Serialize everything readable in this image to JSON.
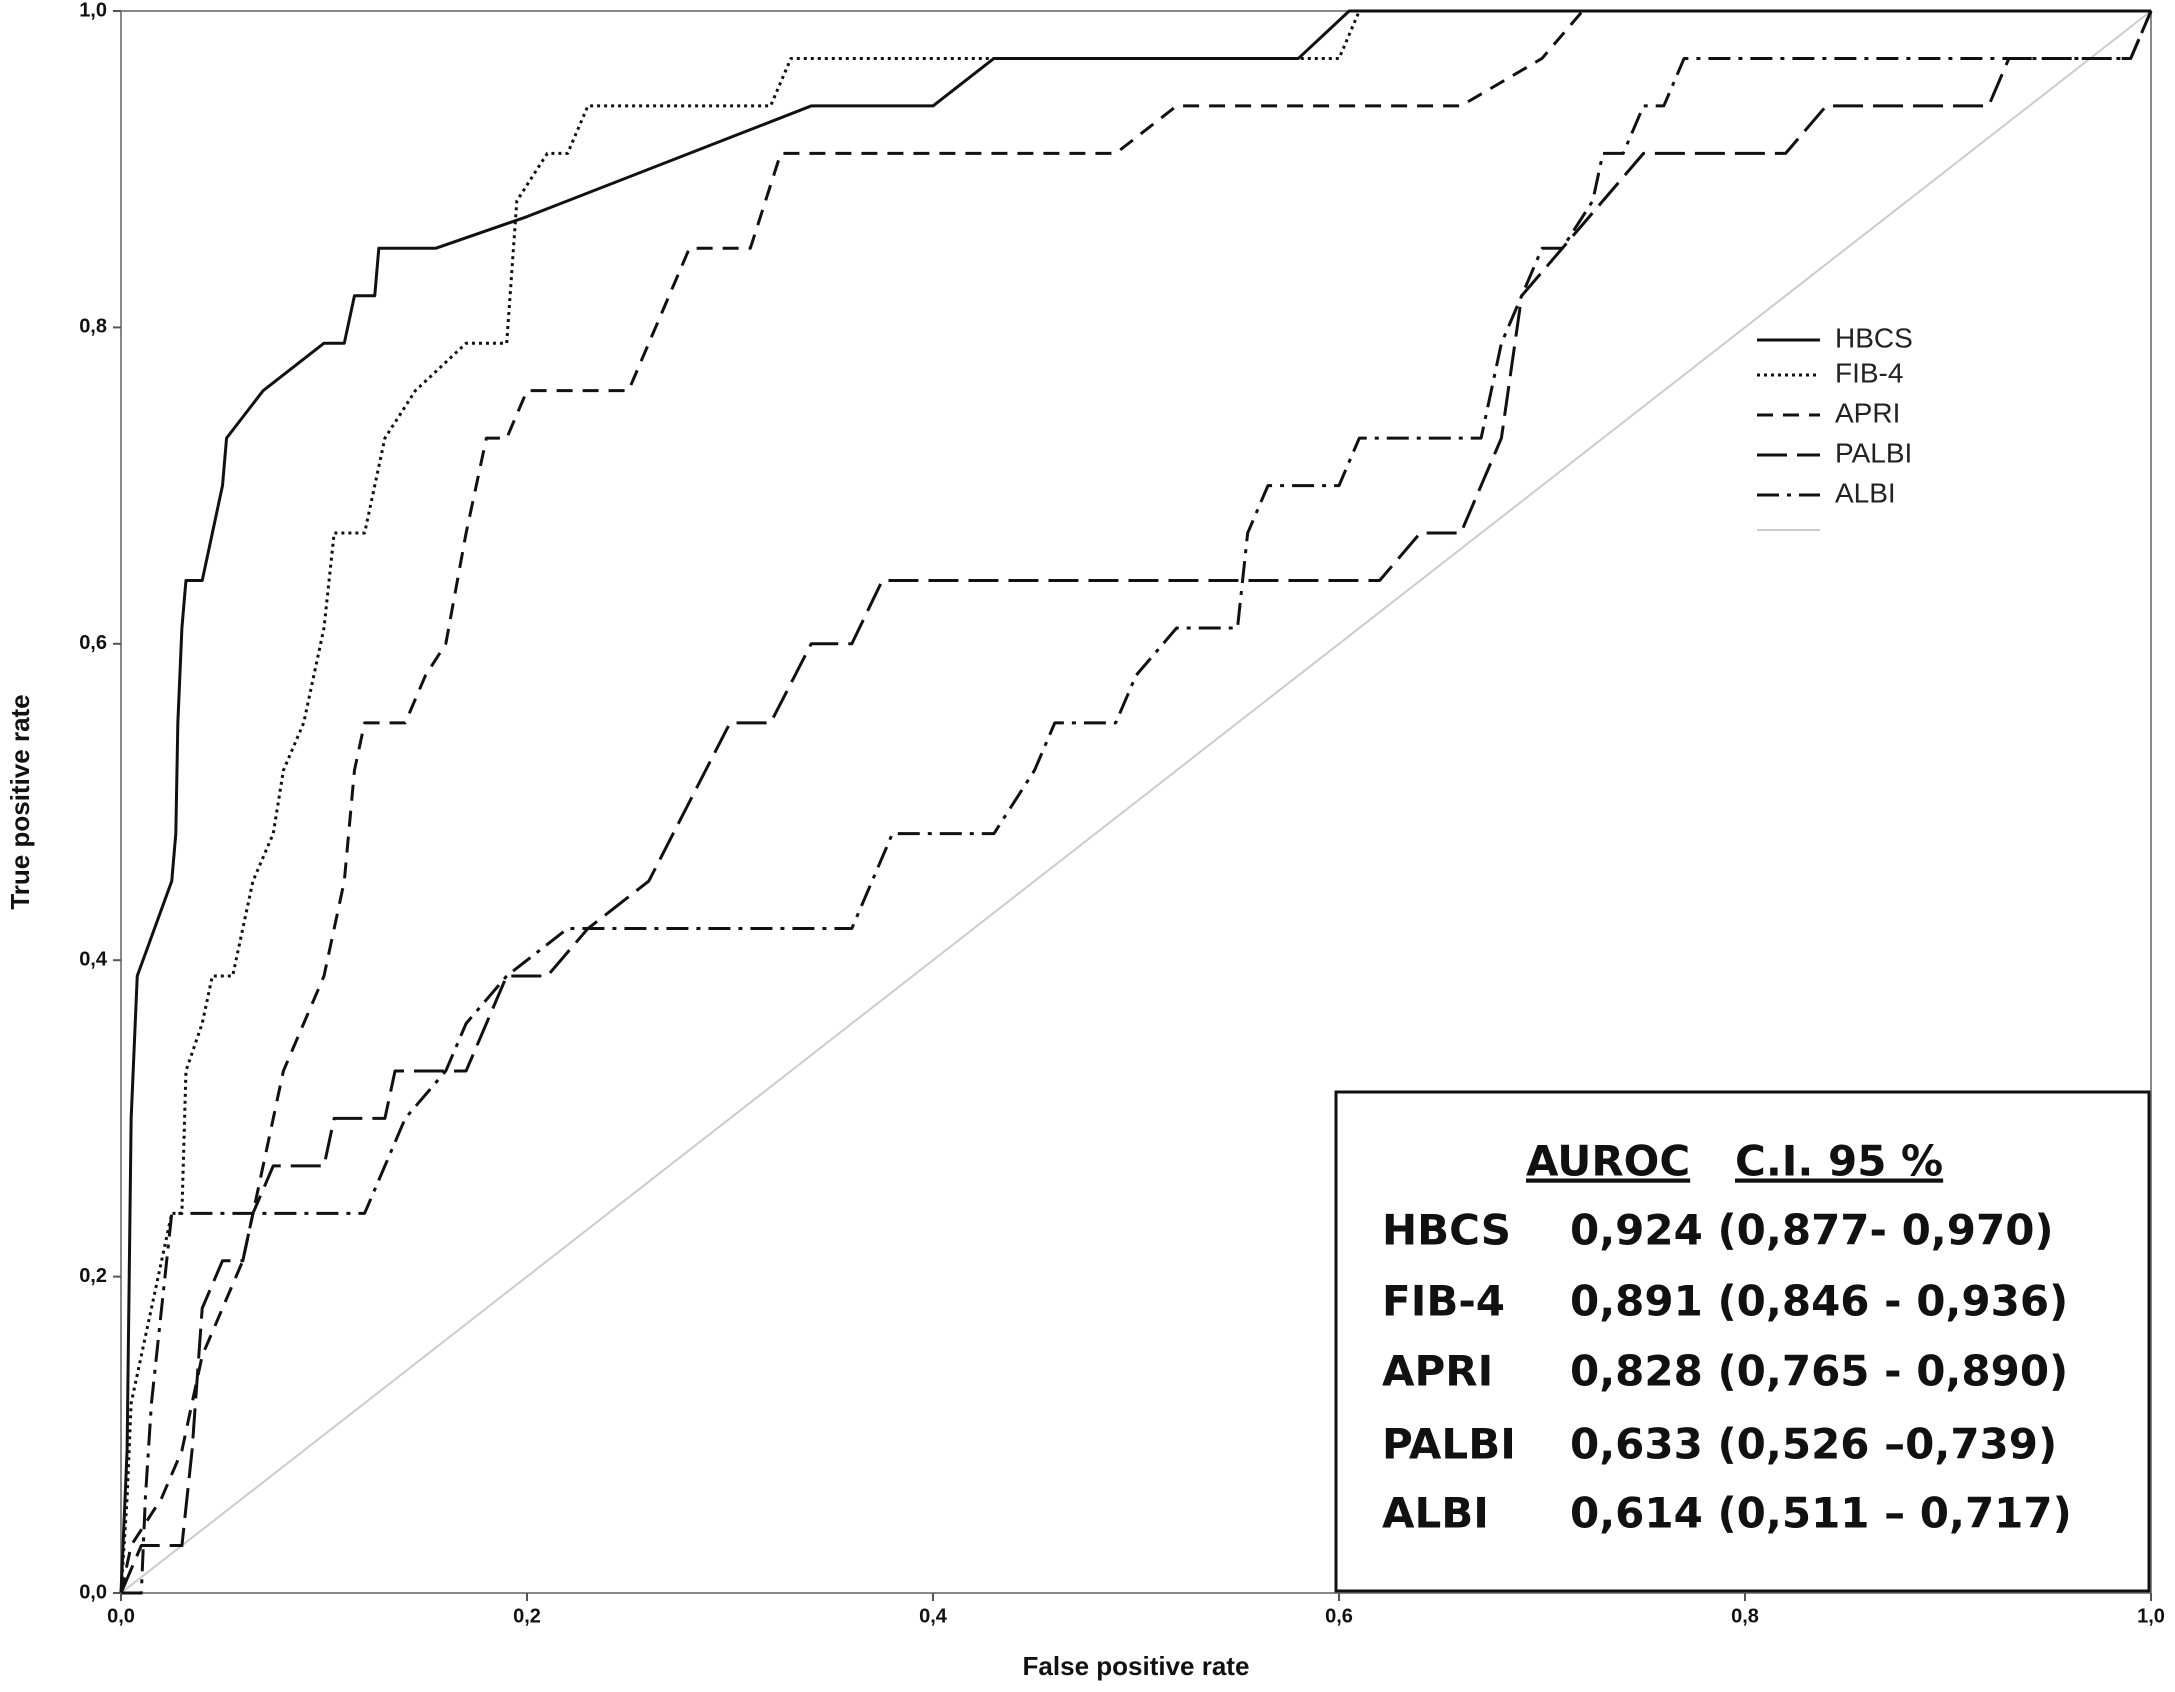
{
  "chart_data": {
    "type": "line",
    "x_label": "False positive rate",
    "y_label": "True positive rate",
    "xlim": [
      0,
      1
    ],
    "ylim": [
      0,
      1
    ],
    "xticks": [
      {
        "value": 0,
        "label": "0,0"
      },
      {
        "value": 0.2,
        "label": "0,2"
      },
      {
        "value": 0.4,
        "label": "0,4"
      },
      {
        "value": 0.6,
        "label": "0,6"
      },
      {
        "value": 0.8,
        "label": "0,8"
      },
      {
        "value": 1,
        "label": "1,0"
      }
    ],
    "yticks": [
      {
        "value": 0,
        "label": "0,0"
      },
      {
        "value": 0.2,
        "label": "0,2"
      },
      {
        "value": 0.4,
        "label": "0,4"
      },
      {
        "value": 0.6,
        "label": "0,6"
      },
      {
        "value": 0.8,
        "label": "0,8"
      },
      {
        "value": 1,
        "label": "1,0"
      }
    ],
    "series": [
      {
        "name": "HBCS",
        "color": "#111111",
        "line_style": "solid",
        "x": [
          0,
          0.003,
          0.005,
          0.008,
          0.025,
          0.027,
          0.028,
          0.03,
          0.032,
          0.04,
          0.05,
          0.052,
          0.07,
          0.1,
          0.11,
          0.115,
          0.125,
          0.127,
          0.155,
          0.2,
          0.34,
          0.4,
          0.43,
          0.58,
          0.605,
          1
        ],
        "values": [
          0,
          0.09,
          0.3,
          0.39,
          0.45,
          0.48,
          0.55,
          0.61,
          0.64,
          0.64,
          0.7,
          0.73,
          0.76,
          0.79,
          0.79,
          0.82,
          0.82,
          0.85,
          0.85,
          0.87,
          0.94,
          0.94,
          0.97,
          0.97,
          1,
          1
        ]
      },
      {
        "name": "FIB-4",
        "color": "#111111",
        "line_style": "dotted",
        "x": [
          0,
          0.003,
          0.005,
          0.01,
          0.015,
          0.02,
          0.025,
          0.03,
          0.032,
          0.04,
          0.045,
          0.055,
          0.06,
          0.065,
          0.075,
          0.08,
          0.09,
          0.1,
          0.105,
          0.12,
          0.13,
          0.145,
          0.17,
          0.19,
          0.195,
          0.21,
          0.22,
          0.23,
          0.32,
          0.33,
          0.6,
          0.61,
          1
        ],
        "values": [
          0,
          0.06,
          0.12,
          0.15,
          0.18,
          0.21,
          0.24,
          0.24,
          0.33,
          0.36,
          0.39,
          0.39,
          0.42,
          0.45,
          0.48,
          0.52,
          0.55,
          0.61,
          0.67,
          0.67,
          0.73,
          0.76,
          0.79,
          0.79,
          0.88,
          0.91,
          0.91,
          0.94,
          0.94,
          0.97,
          0.97,
          1,
          1
        ]
      },
      {
        "name": "APRI",
        "color": "#111111",
        "line_style": "dashed",
        "x": [
          0,
          0.005,
          0.02,
          0.03,
          0.04,
          0.05,
          0.06,
          0.065,
          0.075,
          0.08,
          0.09,
          0.1,
          0.11,
          0.115,
          0.12,
          0.14,
          0.15,
          0.16,
          0.17,
          0.18,
          0.19,
          0.2,
          0.25,
          0.27,
          0.28,
          0.31,
          0.325,
          0.49,
          0.52,
          0.66,
          0.7,
          0.72,
          1
        ],
        "values": [
          0,
          0.03,
          0.06,
          0.09,
          0.15,
          0.18,
          0.21,
          0.24,
          0.3,
          0.33,
          0.36,
          0.39,
          0.45,
          0.52,
          0.55,
          0.55,
          0.58,
          0.6,
          0.67,
          0.73,
          0.73,
          0.76,
          0.76,
          0.82,
          0.85,
          0.85,
          0.91,
          0.91,
          0.94,
          0.94,
          0.97,
          1,
          1
        ]
      },
      {
        "name": "PALBI",
        "color": "#111111",
        "line_style": "long-dashed",
        "x": [
          0,
          0.01,
          0.03,
          0.035,
          0.04,
          0.05,
          0.06,
          0.065,
          0.075,
          0.1,
          0.105,
          0.13,
          0.135,
          0.17,
          0.18,
          0.19,
          0.21,
          0.23,
          0.26,
          0.28,
          0.3,
          0.32,
          0.34,
          0.36,
          0.375,
          0.62,
          0.64,
          0.66,
          0.68,
          0.69,
          0.71,
          0.75,
          0.82,
          0.84,
          0.92,
          0.93,
          0.99,
          1
        ],
        "values": [
          0,
          0.03,
          0.03,
          0.09,
          0.18,
          0.21,
          0.21,
          0.24,
          0.27,
          0.27,
          0.3,
          0.3,
          0.33,
          0.33,
          0.36,
          0.39,
          0.39,
          0.42,
          0.45,
          0.5,
          0.55,
          0.55,
          0.6,
          0.6,
          0.64,
          0.64,
          0.67,
          0.67,
          0.73,
          0.82,
          0.85,
          0.91,
          0.91,
          0.94,
          0.94,
          0.97,
          0.97,
          1
        ]
      },
      {
        "name": "ALBI",
        "color": "#111111",
        "line_style": "dash-dot",
        "x": [
          0,
          0.01,
          0.012,
          0.015,
          0.02,
          0.025,
          0.12,
          0.13,
          0.14,
          0.16,
          0.17,
          0.19,
          0.22,
          0.36,
          0.38,
          0.43,
          0.45,
          0.46,
          0.49,
          0.5,
          0.52,
          0.55,
          0.555,
          0.565,
          0.6,
          0.61,
          0.67,
          0.68,
          0.69,
          0.7,
          0.71,
          0.725,
          0.73,
          0.74,
          0.75,
          0.76,
          0.77,
          0.99,
          1
        ],
        "values": [
          0,
          0,
          0.06,
          0.12,
          0.18,
          0.24,
          0.24,
          0.27,
          0.3,
          0.33,
          0.36,
          0.39,
          0.42,
          0.42,
          0.48,
          0.48,
          0.52,
          0.55,
          0.55,
          0.58,
          0.61,
          0.61,
          0.67,
          0.7,
          0.7,
          0.73,
          0.73,
          0.79,
          0.82,
          0.85,
          0.85,
          0.88,
          0.91,
          0.91,
          0.94,
          0.94,
          0.97,
          0.97,
          1
        ]
      },
      {
        "color": "#cccccc",
        "line_style": "solid",
        "x": [
          0,
          1
        ],
        "values": [
          0,
          1
        ]
      }
    ],
    "annotation": {
      "header": [
        "AUROC",
        "C.I. 95 %"
      ],
      "rows": [
        [
          "HBCS",
          "0,924 (0,877- 0,970)"
        ],
        [
          "FIB-4",
          "0,891 (0,846 - 0,936)"
        ],
        [
          "APRI",
          "0,828 (0,765 - 0,890)"
        ],
        [
          "PALBI",
          "0,633 (0,526 –0,739)"
        ],
        [
          "ALBI",
          "0,614 (0,511 – 0,717)"
        ]
      ]
    }
  }
}
